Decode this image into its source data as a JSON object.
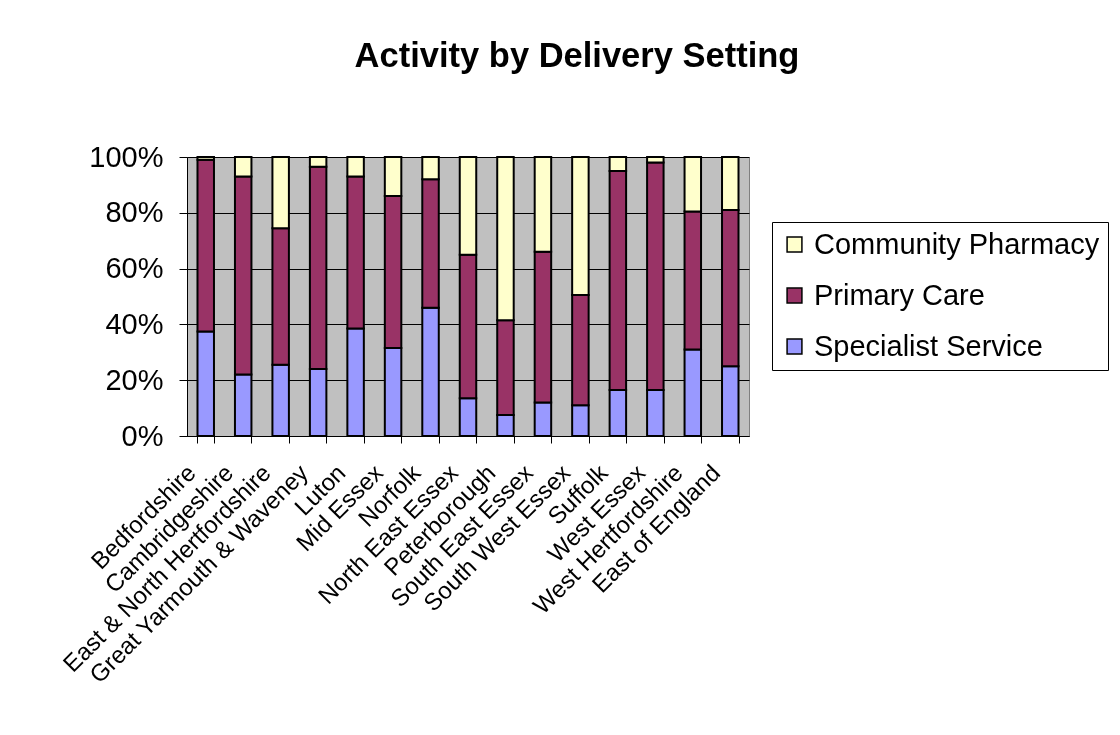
{
  "chart_data": {
    "type": "bar",
    "title": "Activity by Delivery Setting",
    "categories": [
      "Bedfordshire",
      "Cambridgeshire",
      "East & North Hertfordshire",
      "Great Yarmouth & Waveney",
      "Luton",
      "Mid Essex",
      "Norfolk",
      "North East Essex",
      "Peterborough",
      "South East Essex",
      "South West Essex",
      "Suffolk",
      "West Essex",
      "West Hertfordshire",
      "East of England"
    ],
    "stacked": true,
    "series": [
      {
        "name": "Specialist Service",
        "color": "#9999ff",
        "values": [
          37.5,
          22,
          25.5,
          24,
          38.5,
          31.5,
          46,
          13.5,
          7.5,
          12,
          11,
          16.5,
          16.5,
          31,
          25
        ]
      },
      {
        "name": "Primary Care",
        "color": "#993366",
        "values": [
          61.5,
          71,
          49,
          72.5,
          54.5,
          54.5,
          46,
          51.5,
          34,
          54,
          39.5,
          78.5,
          81.5,
          49.5,
          56
        ]
      },
      {
        "name": "Community Pharmacy",
        "color": "#ffffcc",
        "values": [
          1,
          7,
          25.5,
          3.5,
          7,
          14,
          8,
          35,
          58.5,
          34,
          49.5,
          5,
          2,
          19.5,
          19
        ]
      }
    ],
    "ylim": [
      0,
      100
    ],
    "yticks": [
      {
        "value": 0,
        "label": "0%"
      },
      {
        "value": 20,
        "label": "20%"
      },
      {
        "value": 40,
        "label": "40%"
      },
      {
        "value": 60,
        "label": "60%"
      },
      {
        "value": 80,
        "label": "80%"
      },
      {
        "value": 100,
        "label": "100%"
      }
    ],
    "grid": "y",
    "legend": "right"
  }
}
